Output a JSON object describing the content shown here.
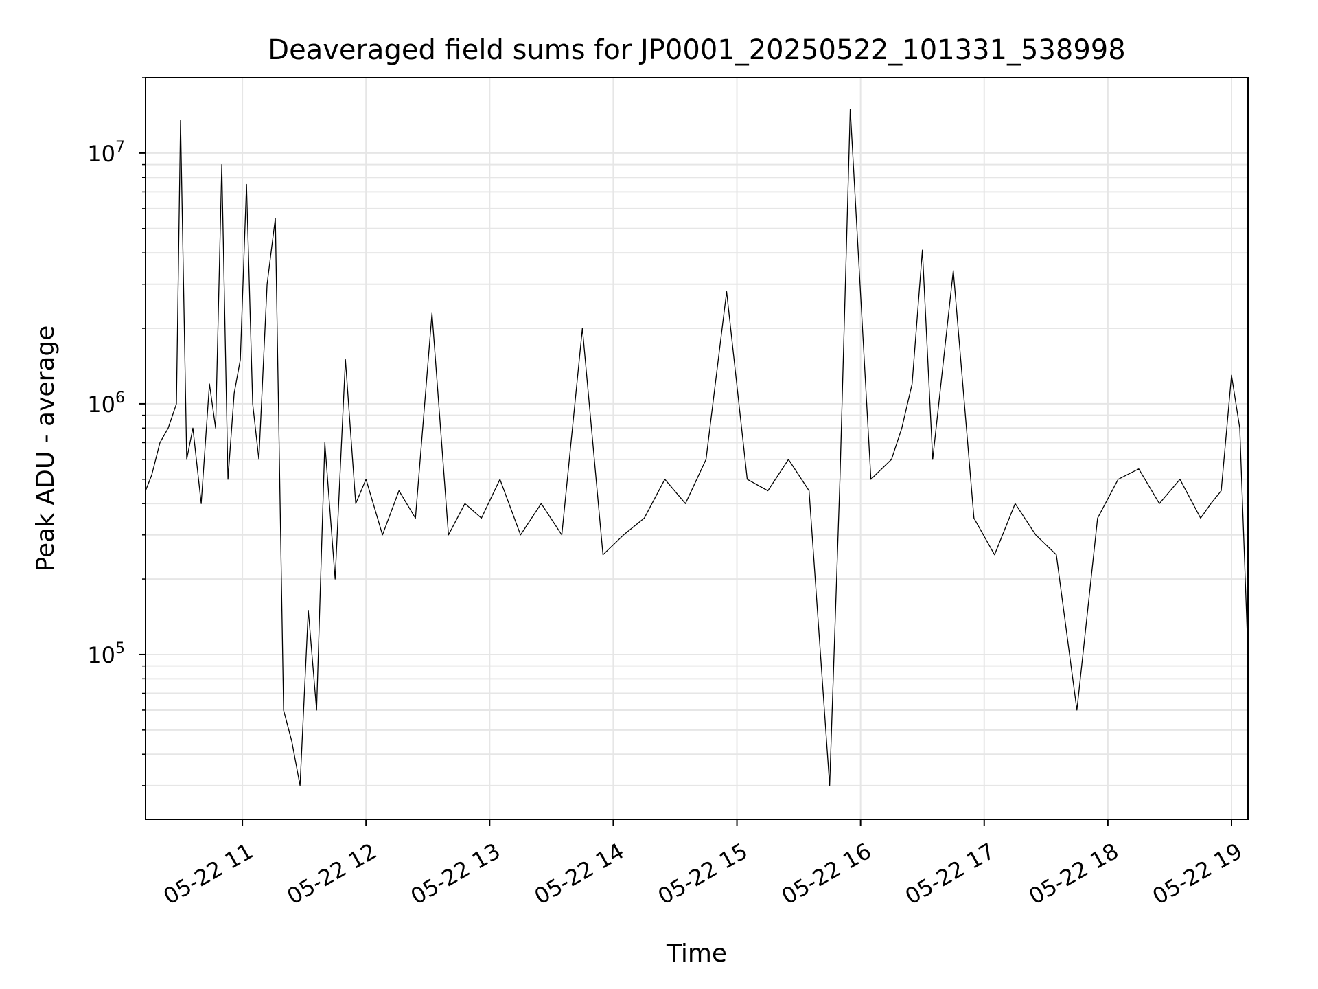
{
  "chart_data": {
    "type": "line",
    "title": "Deaveraged field sums for JP0001_20250522_101331_538998",
    "xlabel": "Time",
    "ylabel": "Peak ADU - average",
    "yscale": "log",
    "ylim": [
      22000,
      20000000
    ],
    "xlim": [
      "05-22 10:13",
      "05-22 19:08"
    ],
    "grid": true,
    "grid_color": "#e6e6e6",
    "line_color": "#000000",
    "x_ticks": [
      "05-22 11",
      "05-22 12",
      "05-22 13",
      "05-22 14",
      "05-22 15",
      "05-22 16",
      "05-22 17",
      "05-22 18",
      "05-22 19"
    ],
    "y_ticks": [
      {
        "base": "10",
        "exp": "5",
        "value": 100000
      },
      {
        "base": "10",
        "exp": "6",
        "value": 1000000
      },
      {
        "base": "10",
        "exp": "7",
        "value": 10000000
      }
    ],
    "series": [
      {
        "x": [
          "05-22 10:13",
          "05-22 10:16",
          "05-22 10:20",
          "05-22 10:24",
          "05-22 10:28",
          "05-22 10:30",
          "05-22 10:33",
          "05-22 10:36",
          "05-22 10:40",
          "05-22 10:44",
          "05-22 10:47",
          "05-22 10:50",
          "05-22 10:53",
          "05-22 10:56",
          "05-22 10:59",
          "05-22 11:02",
          "05-22 11:05",
          "05-22 11:08",
          "05-22 11:12",
          "05-22 11:16",
          "05-22 11:20",
          "05-22 11:24",
          "05-22 11:28",
          "05-22 11:32",
          "05-22 11:36",
          "05-22 11:40",
          "05-22 11:45",
          "05-22 11:50",
          "05-22 11:55",
          "05-22 12:00",
          "05-22 12:08",
          "05-22 12:16",
          "05-22 12:24",
          "05-22 12:32",
          "05-22 12:40",
          "05-22 12:48",
          "05-22 12:56",
          "05-22 13:05",
          "05-22 13:15",
          "05-22 13:25",
          "05-22 13:35",
          "05-22 13:45",
          "05-22 13:55",
          "05-22 14:05",
          "05-22 14:15",
          "05-22 14:25",
          "05-22 14:35",
          "05-22 14:45",
          "05-22 14:55",
          "05-22 15:05",
          "05-22 15:15",
          "05-22 15:25",
          "05-22 15:35",
          "05-22 15:45",
          "05-22 15:50",
          "05-22 15:55",
          "05-22 16:05",
          "05-22 16:15",
          "05-22 16:20",
          "05-22 16:25",
          "05-22 16:30",
          "05-22 16:35",
          "05-22 16:45",
          "05-22 16:55",
          "05-22 17:05",
          "05-22 17:15",
          "05-22 17:25",
          "05-22 17:35",
          "05-22 17:45",
          "05-22 17:55",
          "05-22 18:05",
          "05-22 18:15",
          "05-22 18:25",
          "05-22 18:35",
          "05-22 18:45",
          "05-22 18:50",
          "05-22 18:55",
          "05-22 19:00",
          "05-22 19:04",
          "05-22 19:08"
        ],
        "y": [
          450000,
          520000,
          700000,
          800000,
          1000000,
          13500000,
          600000,
          800000,
          400000,
          1200000,
          800000,
          9000000,
          500000,
          1100000,
          1500000,
          7500000,
          1000000,
          600000,
          3000000,
          5500000,
          60000,
          45000,
          30000,
          150000,
          60000,
          700000,
          200000,
          1500000,
          400000,
          500000,
          300000,
          450000,
          350000,
          2300000,
          300000,
          400000,
          350000,
          500000,
          300000,
          400000,
          300000,
          2000000,
          250000,
          300000,
          350000,
          500000,
          400000,
          600000,
          2800000,
          500000,
          450000,
          600000,
          450000,
          30000,
          500000,
          15000000,
          500000,
          600000,
          800000,
          1200000,
          4100000,
          600000,
          3400000,
          350000,
          250000,
          400000,
          300000,
          250000,
          60000,
          350000,
          500000,
          550000,
          400000,
          500000,
          350000,
          400000,
          450000,
          1300000,
          800000,
          100000
        ]
      }
    ]
  }
}
